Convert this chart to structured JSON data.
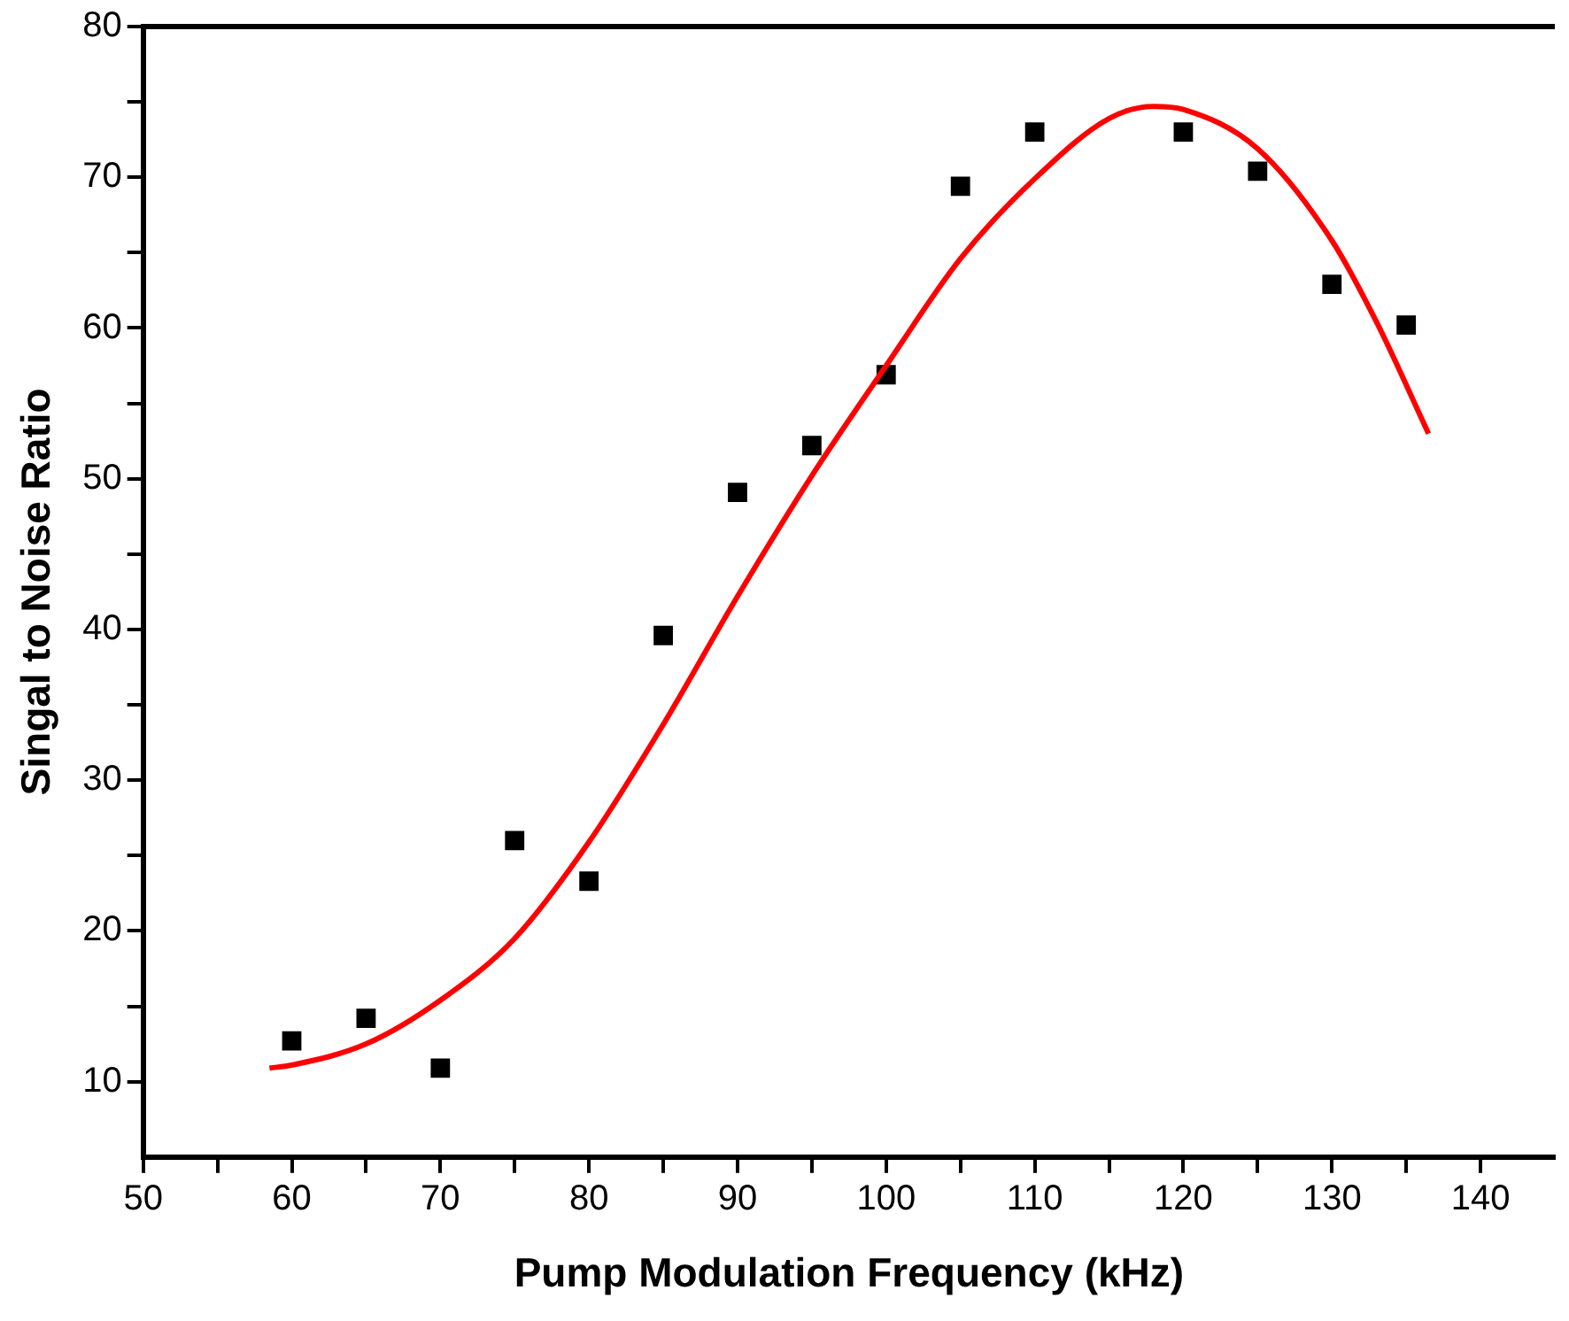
{
  "chart_data": {
    "type": "scatter",
    "xlabel": "Pump Modulation Frequency (kHz)",
    "ylabel": "Singal to Noise Ratio",
    "xlim": [
      50,
      145
    ],
    "ylim": [
      5,
      80
    ],
    "xticks": [
      50,
      {
        "value": 55,
        "label": null
      },
      60,
      {
        "value": 65,
        "label": null
      },
      70,
      {
        "value": 75,
        "label": null
      },
      80,
      {
        "value": 85,
        "label": null
      },
      90,
      {
        "value": 95,
        "label": null
      },
      100,
      {
        "value": 105,
        "label": null
      },
      110,
      {
        "value": 115,
        "label": null
      },
      120,
      {
        "value": 125,
        "label": null
      },
      130,
      {
        "value": 135,
        "label": null
      },
      140
    ],
    "yticks": [
      10,
      {
        "value": 15,
        "label": null
      },
      20,
      {
        "value": 25,
        "label": null
      },
      30,
      {
        "value": 35,
        "label": null
      },
      40,
      {
        "value": 45,
        "label": null
      },
      50,
      {
        "value": 55,
        "label": null
      },
      60,
      {
        "value": 65,
        "label": null
      },
      70,
      {
        "value": 75,
        "label": null
      },
      80
    ],
    "grid": false,
    "legend": false,
    "series": [
      {
        "color": "#000000",
        "marker": "square",
        "x": [
          60,
          65,
          70,
          75,
          80,
          85,
          90,
          95,
          100,
          105,
          110,
          120,
          125,
          130,
          135
        ],
        "values": [
          12.7,
          14.2,
          10.9,
          26.0,
          23.3,
          39.6,
          49.1,
          52.2,
          56.9,
          69.4,
          73.0,
          73.0,
          70.4,
          62.9,
          60.2
        ]
      },
      {
        "type": "line",
        "color": "#ff0000",
        "marker": "none",
        "line_style": "solid",
        "x": [
          58.5,
          60,
          65,
          70,
          75,
          80,
          85,
          90,
          95,
          100,
          105,
          110,
          115,
          118,
          120,
          125,
          130,
          133,
          136.5
        ],
        "values": [
          10.9,
          11.1,
          12.5,
          15.4,
          19.5,
          25.9,
          33.7,
          42.2,
          50.2,
          57.5,
          64.6,
          69.9,
          73.9,
          74.7,
          74.5,
          71.9,
          65.8,
          60.4,
          53.0
        ]
      }
    ]
  }
}
